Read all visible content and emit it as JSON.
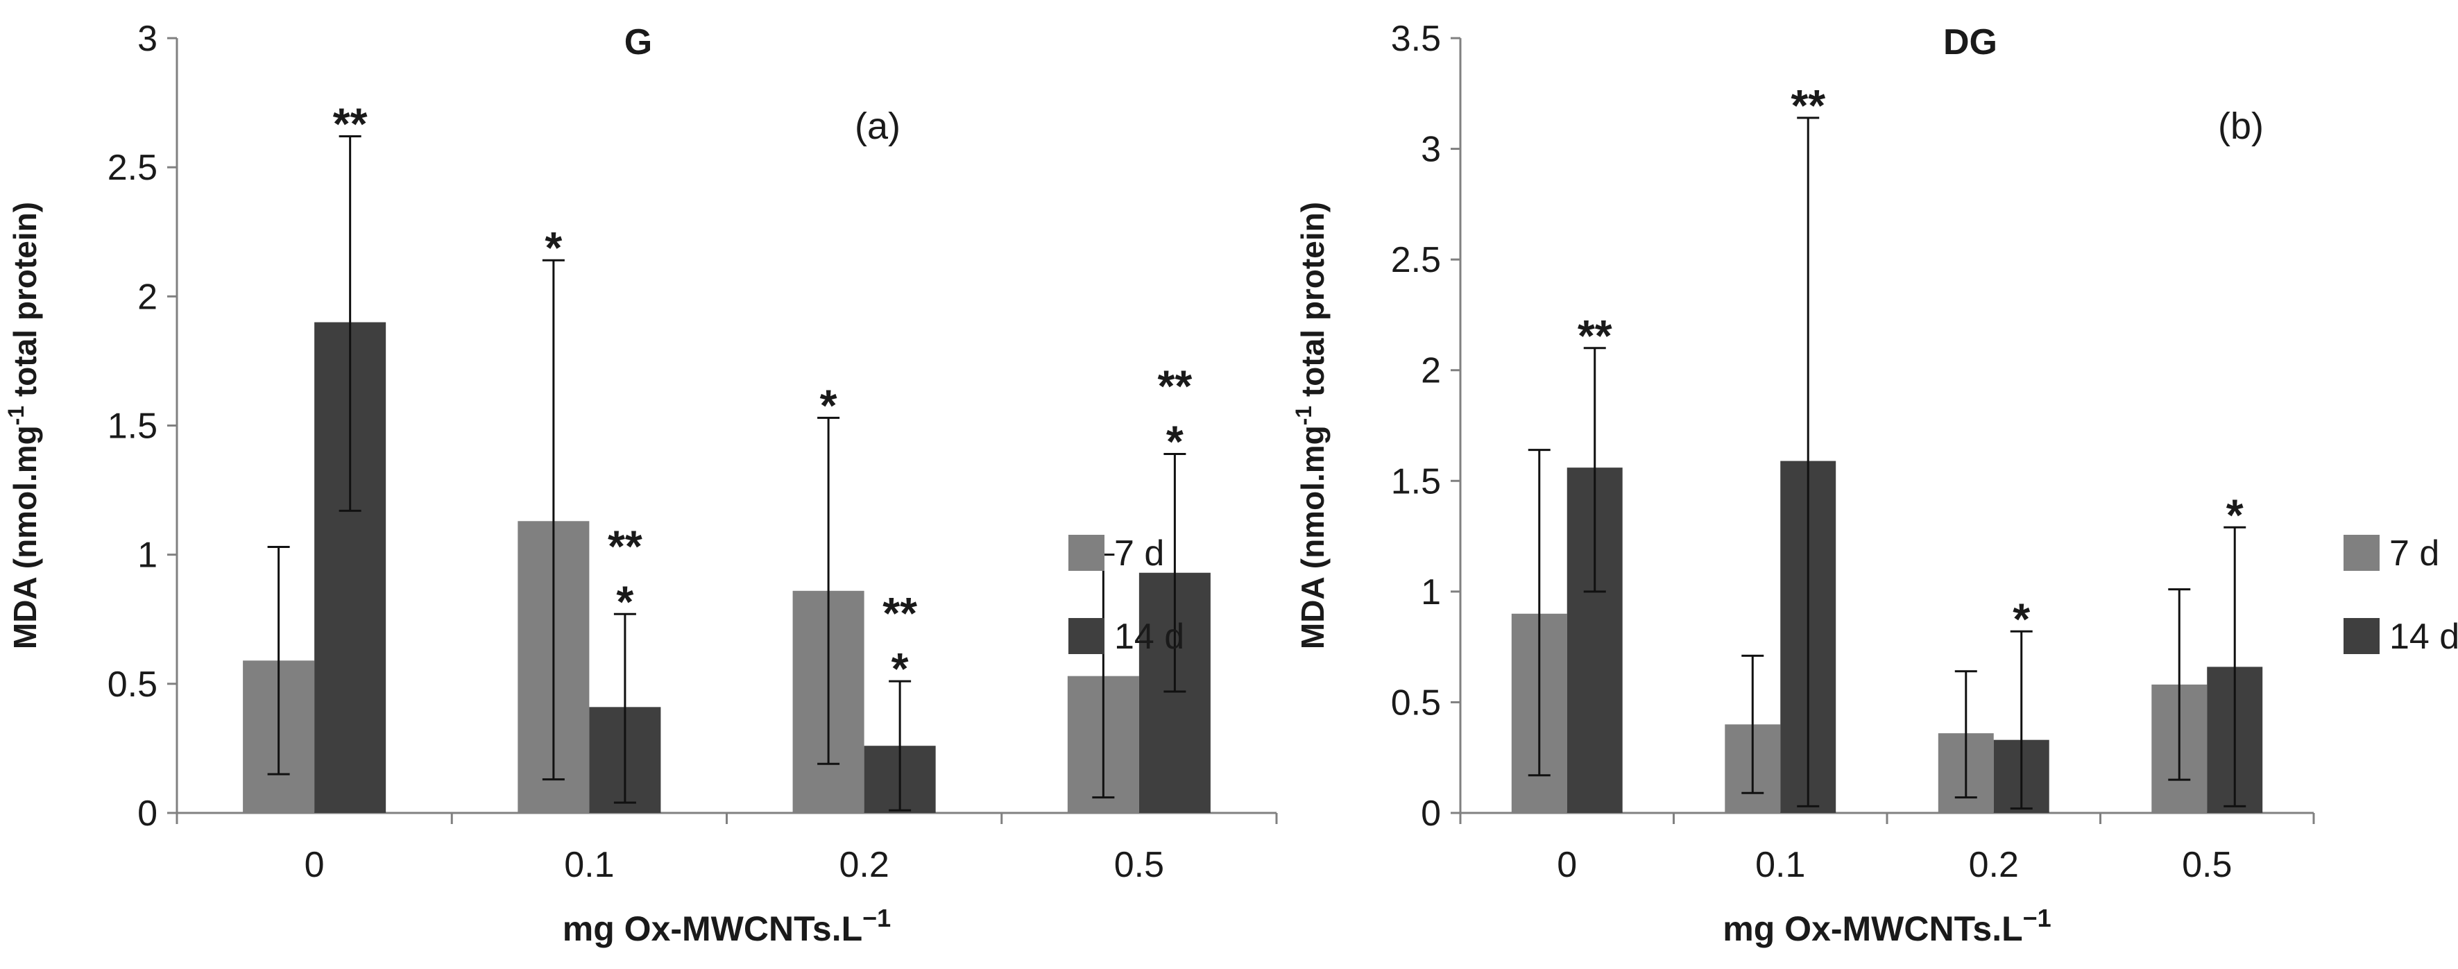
{
  "chart_data": [
    {
      "type": "bar",
      "title": "G",
      "panel_label": "(a)",
      "xlabel": "mg Ox-MWCNTs.L",
      "xlabel_sup": "−1",
      "ylabel": "MDA (nmol.mg",
      "ylabel_sup": "-1",
      "ylabel_tail": " total protein)",
      "categories": [
        "0",
        "0.1",
        "0.2",
        "0.5"
      ],
      "ylim": [
        0,
        3
      ],
      "yticks": [
        "0",
        "0.5",
        "1",
        "1.5",
        "2",
        "2.5",
        "3"
      ],
      "legend_position": "right",
      "series": [
        {
          "name": "7 d",
          "color": "#808080",
          "values": [
            0.59,
            1.13,
            0.86,
            0.53
          ],
          "error_low": [
            0.15,
            0.13,
            0.19,
            0.06
          ],
          "error_high": [
            1.03,
            2.14,
            1.53,
            1.0
          ],
          "annotations": [
            "",
            "*",
            "*",
            ""
          ]
        },
        {
          "name": "14 d",
          "color": "#3f3f3f",
          "values": [
            1.9,
            0.41,
            0.26,
            0.93
          ],
          "error_low": [
            1.17,
            0.04,
            0.01,
            0.47
          ],
          "error_high": [
            2.62,
            0.77,
            0.51,
            1.39
          ],
          "annotations": [
            "**",
            "**\n*",
            "**\n*",
            "**\n*"
          ]
        }
      ]
    },
    {
      "type": "bar",
      "title": "DG",
      "panel_label": "(b)",
      "xlabel": "mg Ox-MWCNTs.L",
      "xlabel_sup": "−1",
      "ylabel": "MDA (nmol.mg",
      "ylabel_sup": "-1",
      "ylabel_tail": " total protein)",
      "categories": [
        "0",
        "0.1",
        "0.2",
        "0.5"
      ],
      "ylim": [
        0,
        3.5
      ],
      "yticks": [
        "0",
        "0.5",
        "1",
        "1.5",
        "2",
        "2.5",
        "3",
        "3.5"
      ],
      "legend_position": "right",
      "series": [
        {
          "name": "7 d",
          "color": "#808080",
          "values": [
            0.9,
            0.4,
            0.36,
            0.58
          ],
          "error_low": [
            0.17,
            0.09,
            0.07,
            0.15
          ],
          "error_high": [
            1.64,
            0.71,
            0.64,
            1.01
          ],
          "annotations": [
            "",
            "",
            "",
            ""
          ]
        },
        {
          "name": "14 d",
          "color": "#3f3f3f",
          "values": [
            1.56,
            1.59,
            0.33,
            0.66
          ],
          "error_low": [
            1.0,
            0.03,
            0.02,
            0.03
          ],
          "error_high": [
            2.1,
            3.14,
            0.82,
            1.29
          ],
          "annotations": [
            "**",
            "**",
            "*",
            "*"
          ]
        }
      ]
    }
  ]
}
